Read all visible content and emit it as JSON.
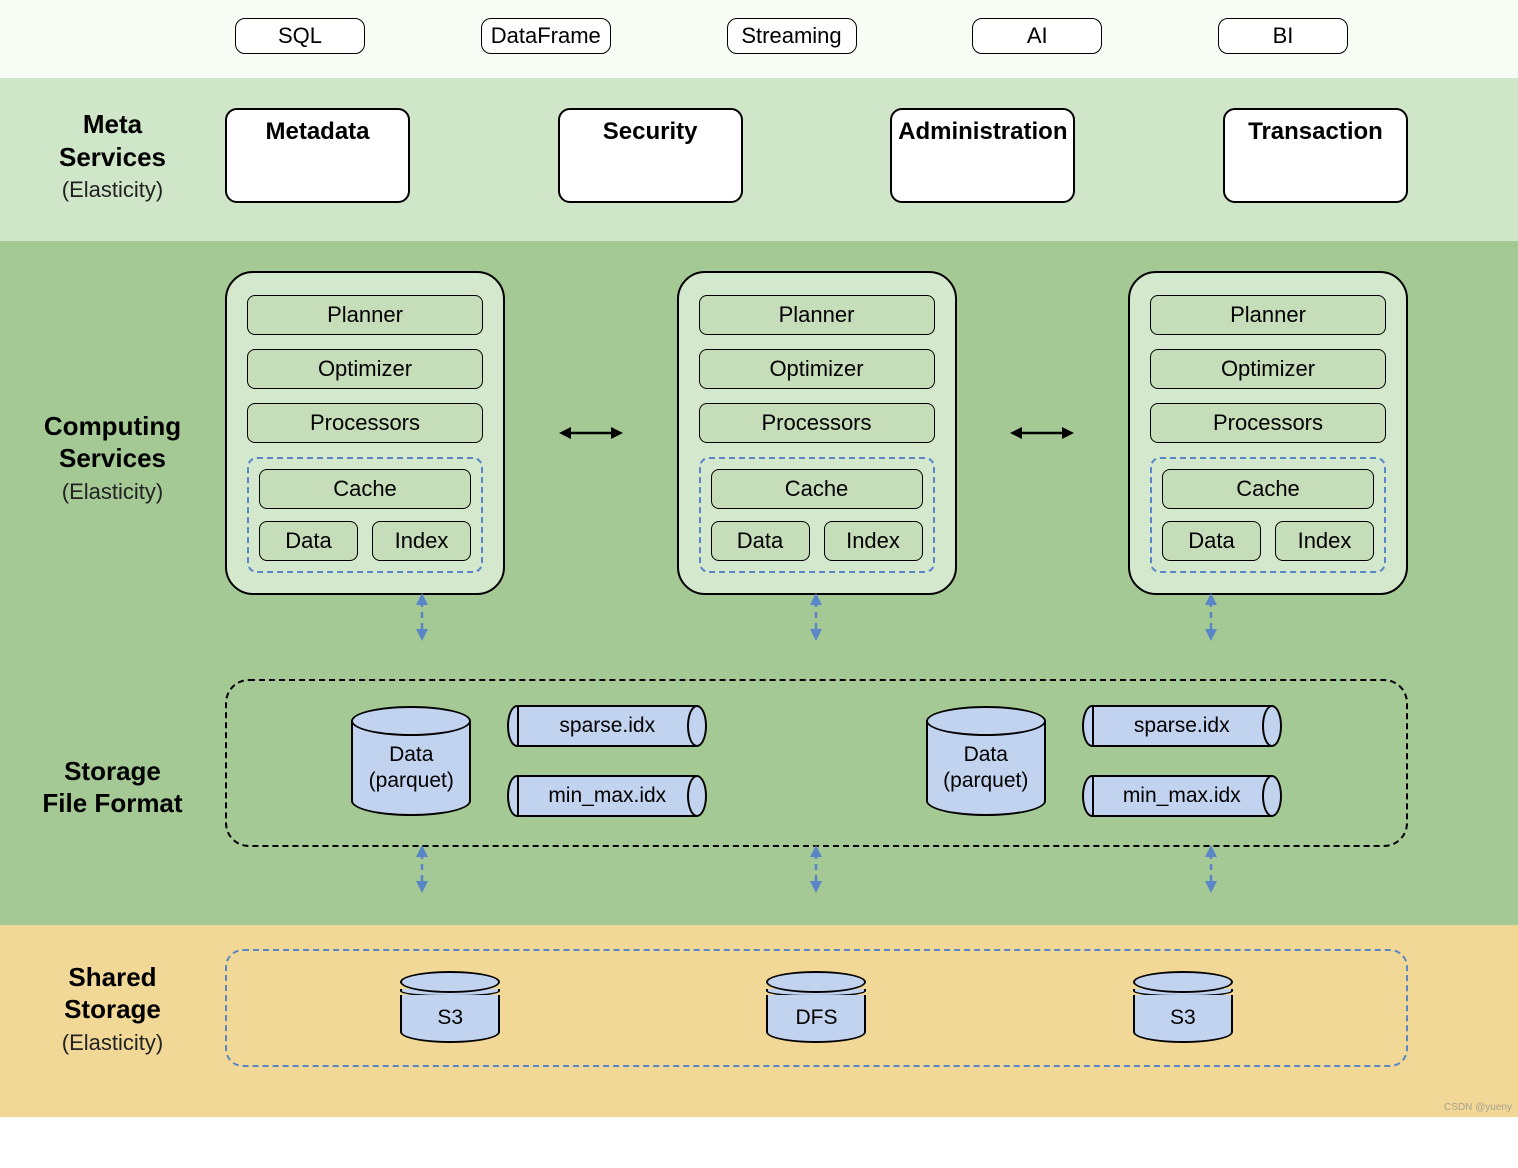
{
  "colors": {
    "bg_interfaces": "#f7fcf5",
    "bg_meta": "#d0e6c8",
    "bg_compute": "#a4c994",
    "bg_shared": "#f2d897",
    "node_fill": "#d4e8cd",
    "block_fill": "#c5ddb8",
    "blue_fill": "#c2d3ef",
    "blue_dash": "#5a86c8",
    "black": "#000000"
  },
  "interfaces": [
    "SQL",
    "DataFrame",
    "Streaming",
    "AI",
    "BI"
  ],
  "meta": {
    "title": "Meta\nServices",
    "subtitle": "(Elasticity)",
    "items": [
      "Metadata",
      "Security",
      "Administration",
      "Transaction"
    ]
  },
  "compute": {
    "title": "Computing\nServices",
    "subtitle": "(Elasticity)",
    "node_blocks": [
      "Planner",
      "Optimizer",
      "Processors"
    ],
    "cache_label": "Cache",
    "cache_items": [
      "Data",
      "Index"
    ],
    "node_count": 3
  },
  "storage_format": {
    "title": "Storage\nFile Format",
    "data_label_l1": "Data",
    "data_label_l2": "(parquet)",
    "idx1": "sparse.idx",
    "idx2": "min_max.idx",
    "group_count": 2
  },
  "shared": {
    "title": "Shared\nStorage",
    "subtitle": "(Elasticity)",
    "stores": [
      "S3",
      "DFS",
      "S3"
    ]
  },
  "watermark": "CSDN @yueny"
}
